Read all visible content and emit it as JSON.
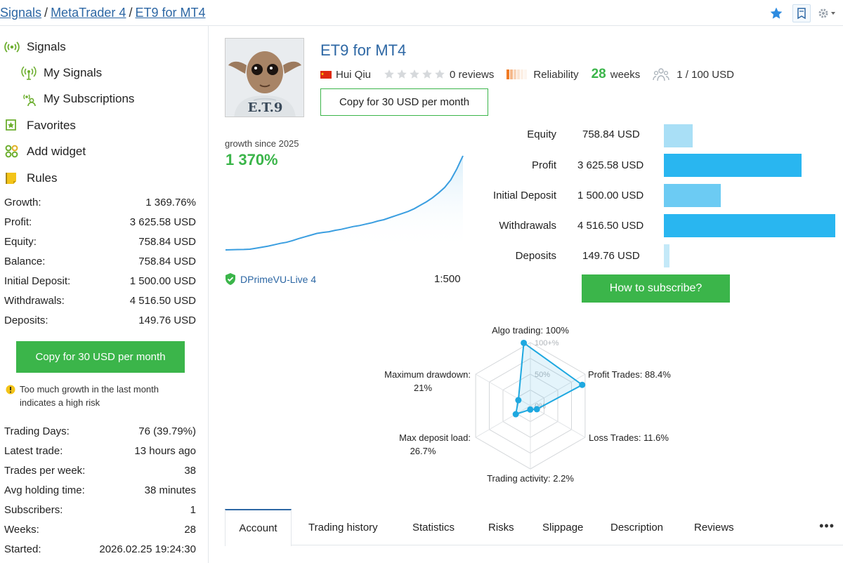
{
  "breadcrumb": [
    "Signals",
    "MetaTrader 4",
    "ET9 for MT4"
  ],
  "top_actions": [
    "star-icon",
    "bookmark-icon",
    "gear-icon"
  ],
  "sidebar": {
    "nav": [
      {
        "label": "Signals",
        "icon": "signal-icon",
        "sub": false
      },
      {
        "label": "My Signals",
        "icon": "my-signals-icon",
        "sub": true
      },
      {
        "label": "My Subscriptions",
        "icon": "subscriptions-icon",
        "sub": true
      },
      {
        "label": "Favorites",
        "icon": "favorites-icon",
        "sub": false
      },
      {
        "label": "Add widget",
        "icon": "widget-icon",
        "sub": false
      },
      {
        "label": "Rules",
        "icon": "rules-icon",
        "sub": false
      }
    ],
    "stats": [
      {
        "label": "Growth:",
        "value": "1 369.76%"
      },
      {
        "label": "Profit:",
        "value": "3 625.58 USD"
      },
      {
        "label": "Equity:",
        "value": "758.84 USD"
      },
      {
        "label": "Balance:",
        "value": "758.84 USD"
      },
      {
        "label": "Initial Deposit:",
        "value": "1 500.00 USD"
      },
      {
        "label": "Withdrawals:",
        "value": "4 516.50 USD"
      },
      {
        "label": "Deposits:",
        "value": "149.76 USD"
      }
    ],
    "copy_button": "Copy for 30 USD per month",
    "warning": "Too much growth in the last month indicates a high risk",
    "stats2": [
      {
        "label": "Trading Days:",
        "value": "76 (39.79%)"
      },
      {
        "label": "Latest trade:",
        "value": "13 hours ago"
      },
      {
        "label": "Trades per week:",
        "value": "38"
      },
      {
        "label": "Avg holding time:",
        "value": "38 minutes"
      },
      {
        "label": "Subscribers:",
        "value": "1"
      },
      {
        "label": "Weeks:",
        "value": "28"
      },
      {
        "label": "Started:",
        "value": "2026.02.25 19:24:30"
      }
    ]
  },
  "signal": {
    "title": "ET9 for MT4",
    "avatar_text": "E.T.9",
    "author": "Hui Qiu",
    "author_flag": "china-flag-icon",
    "reviews": "0 reviews",
    "stars": 0,
    "reliability_label": "Reliability",
    "weeks_num": "28",
    "weeks_label": "weeks",
    "subscribers": "1 / 100 USD",
    "copy_button": "Copy for 30 USD per month",
    "growth_label": "growth since 2025",
    "growth_value": "1 370%",
    "server": "DPrimeVU-Live 4",
    "leverage": "1:500",
    "subscribe_button": "How to subscribe?"
  },
  "accent_colors": {
    "green": "#3bb54a",
    "blue": "#2d67a4",
    "bar": "#29b6f0",
    "radar": "#1ea8e0"
  },
  "balance_bars": [
    {
      "label": "Equity",
      "value": "758.84 USD",
      "amount": 758.84
    },
    {
      "label": "Profit",
      "value": "3 625.58 USD",
      "amount": 3625.58
    },
    {
      "label": "Initial Deposit",
      "value": "1 500.00 USD",
      "amount": 1500.0
    },
    {
      "label": "Withdrawals",
      "value": "4 516.50 USD",
      "amount": 4516.5
    },
    {
      "label": "Deposits",
      "value": "149.76 USD",
      "amount": 149.76
    }
  ],
  "chart_data": [
    {
      "type": "line",
      "title": "growth since 2025",
      "x": [
        1,
        2,
        3,
        4,
        5,
        6,
        7,
        8,
        9,
        10,
        11,
        12,
        13,
        14,
        15,
        16,
        17,
        18,
        19,
        20,
        21,
        22,
        23,
        24,
        25,
        26,
        27,
        28,
        29,
        30,
        31,
        32,
        33,
        34,
        35,
        36,
        37,
        38,
        39,
        40
      ],
      "values": [
        0,
        3,
        5,
        6,
        10,
        25,
        40,
        55,
        75,
        95,
        110,
        135,
        165,
        190,
        215,
        240,
        255,
        265,
        285,
        300,
        320,
        340,
        355,
        375,
        395,
        420,
        440,
        470,
        500,
        530,
        560,
        600,
        650,
        700,
        760,
        830,
        910,
        1020,
        1180,
        1370
      ]
    },
    {
      "type": "radar",
      "axes": [
        {
          "label": "Algo trading: 100%",
          "value": 100
        },
        {
          "label": "Profit Trades: 88.4%",
          "value": 88.4
        },
        {
          "label": "Loss Trades: 11.6%",
          "value": 11.6
        },
        {
          "label": "Trading activity: 2.2%",
          "value": 2.2
        },
        {
          "label": "Max deposit load:",
          "label2": "26.7%",
          "value": 26.7
        },
        {
          "label": "Maximum drawdown:",
          "label2": "21%",
          "value": 21
        }
      ],
      "ticks": [
        "100+%",
        "50%",
        "0%"
      ]
    }
  ],
  "tabs": [
    "Account",
    "Trading history",
    "Statistics",
    "Risks",
    "Slippage",
    "Description",
    "Reviews"
  ],
  "active_tab": "Account",
  "tabs_more": "•••"
}
